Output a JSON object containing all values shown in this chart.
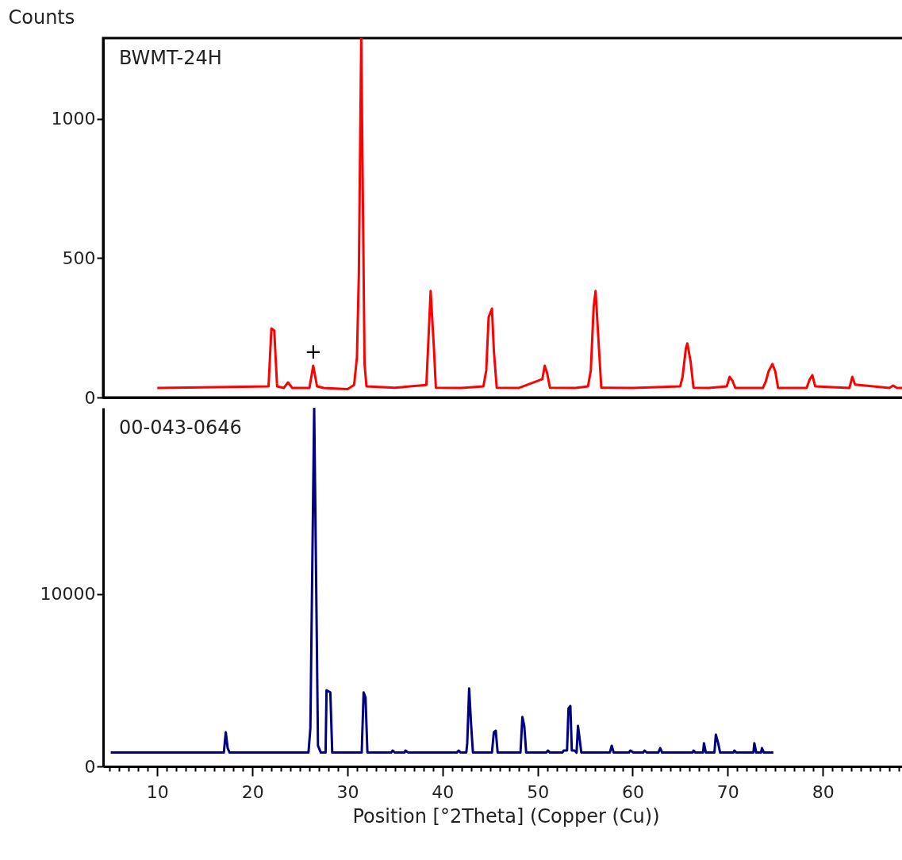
{
  "chart_data": [
    {
      "type": "line",
      "ylabel": "Counts",
      "xlim": [
        4.3,
        89
      ],
      "ylim": [
        0,
        1290
      ],
      "yticks": [
        0,
        500,
        1000
      ],
      "tick_labels": "y",
      "grid": false,
      "annotations": [
        {
          "text": "+",
          "x": 26.4,
          "y": 114
        }
      ],
      "series": [
        {
          "name": "BWMT-24H",
          "color": "#ff0000",
          "x": [
            10,
            21.7,
            22.0,
            22.3,
            22.6,
            23.3,
            23.75,
            24.2,
            26.0,
            26.4,
            26.8,
            27.5,
            30.0,
            30.7,
            31.0,
            31.2,
            31.45,
            31.6,
            31.8,
            32.0,
            35.0,
            38.3,
            38.5,
            38.75,
            39.1,
            39.3,
            42,
            44.3,
            44.6,
            44.85,
            45.2,
            45.4,
            45.7,
            48,
            50.5,
            50.75,
            51.0,
            51.3,
            54,
            55.3,
            55.6,
            55.9,
            56.1,
            56.4,
            56.7,
            60,
            65.0,
            65.25,
            65.6,
            65.75,
            66.1,
            66.4,
            68,
            69.9,
            70.2,
            70.5,
            70.8,
            73.7,
            74.0,
            74.3,
            74.7,
            75.0,
            75.3,
            78.3,
            78.6,
            78.9,
            79.2,
            82.8,
            83.1,
            83.4,
            87,
            87.4,
            87.8,
            88.9
          ],
          "values": [
            34,
            40,
            248,
            240,
            40,
            34,
            54,
            34,
            34,
            114,
            40,
            34,
            30,
            45,
            145,
            447,
            1290,
            780,
            120,
            40,
            35,
            45,
            194,
            382,
            174,
            35,
            34,
            40,
            97,
            288,
            319,
            168,
            35,
            34,
            66,
            114,
            88,
            35,
            34,
            40,
            97,
            327,
            382,
            208,
            35,
            34,
            40,
            74,
            177,
            194,
            128,
            35,
            34,
            40,
            74,
            60,
            34,
            34,
            57,
            94,
            120,
            94,
            34,
            34,
            63,
            80,
            40,
            34,
            74,
            46,
            34,
            43,
            34,
            34
          ]
        }
      ]
    },
    {
      "type": "line",
      "xlabel": "Position [°2Theta] (Copper (Cu))",
      "xlim": [
        4.3,
        89
      ],
      "ylim": [
        0,
        20800
      ],
      "yticks": [
        0,
        10000
      ],
      "grid": false,
      "xticks": [
        {
          "value": 5,
          "label": null
        },
        {
          "value": 6,
          "label": null
        },
        {
          "value": 7,
          "label": null
        },
        {
          "value": 8,
          "label": null
        },
        {
          "value": 9,
          "label": null
        },
        10,
        {
          "value": 11,
          "label": null
        },
        {
          "value": 12,
          "label": null
        },
        {
          "value": 13,
          "label": null
        },
        {
          "value": 14,
          "label": null
        },
        {
          "value": 15,
          "label": null
        },
        {
          "value": 16,
          "label": null
        },
        {
          "value": 17,
          "label": null
        },
        {
          "value": 18,
          "label": null
        },
        {
          "value": 19,
          "label": null
        },
        20,
        {
          "value": 21,
          "label": null
        },
        {
          "value": 22,
          "label": null
        },
        {
          "value": 23,
          "label": null
        },
        {
          "value": 24,
          "label": null
        },
        {
          "value": 25,
          "label": null
        },
        {
          "value": 26,
          "label": null
        },
        {
          "value": 27,
          "label": null
        },
        {
          "value": 28,
          "label": null
        },
        {
          "value": 29,
          "label": null
        },
        30,
        {
          "value": 31,
          "label": null
        },
        {
          "value": 32,
          "label": null
        },
        {
          "value": 33,
          "label": null
        },
        {
          "value": 34,
          "label": null
        },
        {
          "value": 35,
          "label": null
        },
        {
          "value": 36,
          "label": null
        },
        {
          "value": 37,
          "label": null
        },
        {
          "value": 38,
          "label": null
        },
        {
          "value": 39,
          "label": null
        },
        40,
        {
          "value": 41,
          "label": null
        },
        {
          "value": 42,
          "label": null
        },
        {
          "value": 43,
          "label": null
        },
        {
          "value": 44,
          "label": null
        },
        {
          "value": 45,
          "label": null
        },
        {
          "value": 46,
          "label": null
        },
        {
          "value": 47,
          "label": null
        },
        {
          "value": 48,
          "label": null
        },
        {
          "value": 49,
          "label": null
        },
        50,
        {
          "value": 51,
          "label": null
        },
        {
          "value": 52,
          "label": null
        },
        {
          "value": 53,
          "label": null
        },
        {
          "value": 54,
          "label": null
        },
        {
          "value": 55,
          "label": null
        },
        {
          "value": 56,
          "label": null
        },
        {
          "value": 57,
          "label": null
        },
        {
          "value": 58,
          "label": null
        },
        {
          "value": 59,
          "label": null
        },
        60,
        {
          "value": 61,
          "label": null
        },
        {
          "value": 62,
          "label": null
        },
        {
          "value": 63,
          "label": null
        },
        {
          "value": 64,
          "label": null
        },
        {
          "value": 65,
          "label": null
        },
        {
          "value": 66,
          "label": null
        },
        {
          "value": 67,
          "label": null
        },
        {
          "value": 68,
          "label": null
        },
        {
          "value": 69,
          "label": null
        },
        70,
        {
          "value": 71,
          "label": null
        },
        {
          "value": 72,
          "label": null
        },
        {
          "value": 73,
          "label": null
        },
        {
          "value": 74,
          "label": null
        },
        {
          "value": 75,
          "label": null
        },
        {
          "value": 76,
          "label": null
        },
        {
          "value": 77,
          "label": null
        },
        {
          "value": 78,
          "label": null
        },
        {
          "value": 79,
          "label": null
        },
        80,
        {
          "value": 81,
          "label": null
        },
        {
          "value": 82,
          "label": null
        },
        {
          "value": 83,
          "label": null
        },
        {
          "value": 84,
          "label": null
        },
        {
          "value": 85,
          "label": null
        },
        {
          "value": 86,
          "label": null
        },
        {
          "value": 87,
          "label": null
        },
        {
          "value": 88,
          "label": null
        }
      ],
      "series": [
        {
          "name": "00-043-0646",
          "color": "#000080",
          "x": [
            5.1,
            17.0,
            17.2,
            17.4,
            17.6,
            25.9,
            26.1,
            26.5,
            26.7,
            26.9,
            27.2,
            27.7,
            27.8,
            28.2,
            28.4,
            31.5,
            31.7,
            31.9,
            32.1,
            34.6,
            34.75,
            35.0,
            36.0,
            36.1,
            36.4,
            41.5,
            41.7,
            41.9,
            42.5,
            42.6,
            42.8,
            43.0,
            43.2,
            45.2,
            45.4,
            45.6,
            45.8,
            48.2,
            48.4,
            48.6,
            48.8,
            50.9,
            51.1,
            51.3,
            52.6,
            52.75,
            53.1,
            53.25,
            53.45,
            53.6,
            53.9,
            54.1,
            54.25,
            54.4,
            54.6,
            57.6,
            57.8,
            58.0,
            59.6,
            59.75,
            60.1,
            61.1,
            61.25,
            61.5,
            62.7,
            62.9,
            63.1,
            66.3,
            66.4,
            66.6,
            67.4,
            67.5,
            67.7,
            68.6,
            68.75,
            69.0,
            69.2,
            70.6,
            70.7,
            70.9,
            72.7,
            72.8,
            73.0,
            73.5,
            73.6,
            73.8,
            74.8
          ],
          "values": [
            800,
            800,
            1980,
            1060,
            800,
            800,
            2210,
            20800,
            11150,
            1200,
            800,
            800,
            4420,
            4290,
            800,
            800,
            4290,
            4000,
            800,
            800,
            920,
            800,
            800,
            920,
            800,
            800,
            920,
            800,
            800,
            1340,
            4520,
            2490,
            800,
            800,
            1980,
            2070,
            800,
            800,
            2860,
            2350,
            800,
            800,
            920,
            800,
            800,
            920,
            920,
            3360,
            3500,
            920,
            920,
            800,
            2350,
            1700,
            800,
            800,
            1200,
            800,
            800,
            920,
            800,
            800,
            920,
            800,
            800,
            1060,
            800,
            800,
            920,
            800,
            800,
            1340,
            800,
            800,
            1840,
            1340,
            800,
            800,
            920,
            800,
            800,
            1340,
            800,
            800,
            1060,
            800,
            800
          ]
        }
      ]
    }
  ]
}
